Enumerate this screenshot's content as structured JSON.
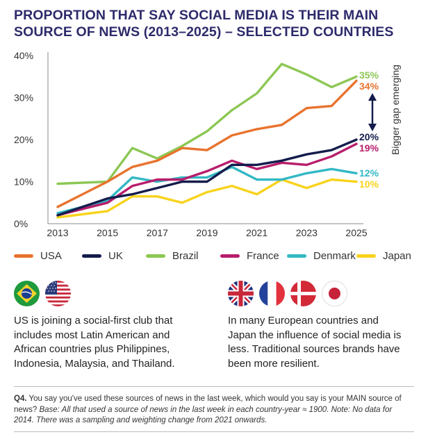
{
  "title": "PROPORTION THAT SAY SOCIAL MEDIA IS THEIR MAIN SOURCE OF NEWS (2013–2025) – SELECTED COUNTRIES",
  "annotation": "Bigger gap emerging",
  "colors": {
    "USA": "#e8732e",
    "UK": "#141c4c",
    "Brazil": "#8dc754",
    "France": "#b81d6b",
    "Denmark": "#33b8c4",
    "Japan": "#f8d31c",
    "title": "#2d2b6b"
  },
  "chart_data": {
    "type": "line",
    "x": [
      2013,
      2015,
      2016,
      2017,
      2018,
      2019,
      2020,
      2021,
      2022,
      2023,
      2024,
      2025
    ],
    "x_ticks": [
      "2013",
      "2015",
      "2017",
      "2019",
      "2021",
      "2023",
      "2025"
    ],
    "y_ticks": [
      "0%",
      "10%",
      "20%",
      "30%",
      "40%"
    ],
    "ylim": [
      0,
      40
    ],
    "grid": false,
    "legend_position": "bottom",
    "series": [
      {
        "name": "USA",
        "values": [
          4,
          10,
          13.5,
          15,
          18,
          17.5,
          21,
          22.5,
          23.5,
          27.5,
          28,
          34
        ],
        "end_label": "34%"
      },
      {
        "name": "UK",
        "values": [
          2,
          6,
          7,
          8.5,
          10,
          10,
          14,
          14,
          15,
          16.5,
          17.5,
          20
        ],
        "end_label": "20%"
      },
      {
        "name": "Brazil",
        "values": [
          9.5,
          10,
          18,
          15.5,
          18.5,
          22,
          27,
          31,
          38,
          35.5,
          32.5,
          35
        ],
        "end_label": "35%"
      },
      {
        "name": "France",
        "values": [
          2,
          5,
          9,
          10.5,
          10.5,
          12.5,
          15,
          13,
          14.5,
          14,
          16,
          19
        ],
        "end_label": "19%"
      },
      {
        "name": "Denmark",
        "values": [
          2.5,
          5.5,
          11,
          10,
          11,
          11,
          13.5,
          10.5,
          10.5,
          12,
          13,
          12
        ],
        "end_label": "12%"
      },
      {
        "name": "Japan",
        "values": [
          1.5,
          3,
          6.5,
          6.5,
          5,
          7.5,
          9,
          7,
          10.5,
          8.5,
          10.5,
          10
        ],
        "end_label": "10%"
      }
    ]
  },
  "left_text": "US is joining a social-first club that includes most Latin American and African countries plus Philippines, Indonesia, Malaysia, and Thailand.",
  "right_text": "In many European countries and Japan the influence of social media is less. Traditional sources brands have been more resilient.",
  "footnote": {
    "q_label": "Q4.",
    "question": "You say you've used these sources of news in the last week, which would you say is your MAIN source of news?",
    "base_label": "Base:",
    "base_text": "All that used a source of news in the last week in each country-year ≈ 1900. Note: No data for 2014. There was a sampling and weighting change from 2021 onwards."
  }
}
